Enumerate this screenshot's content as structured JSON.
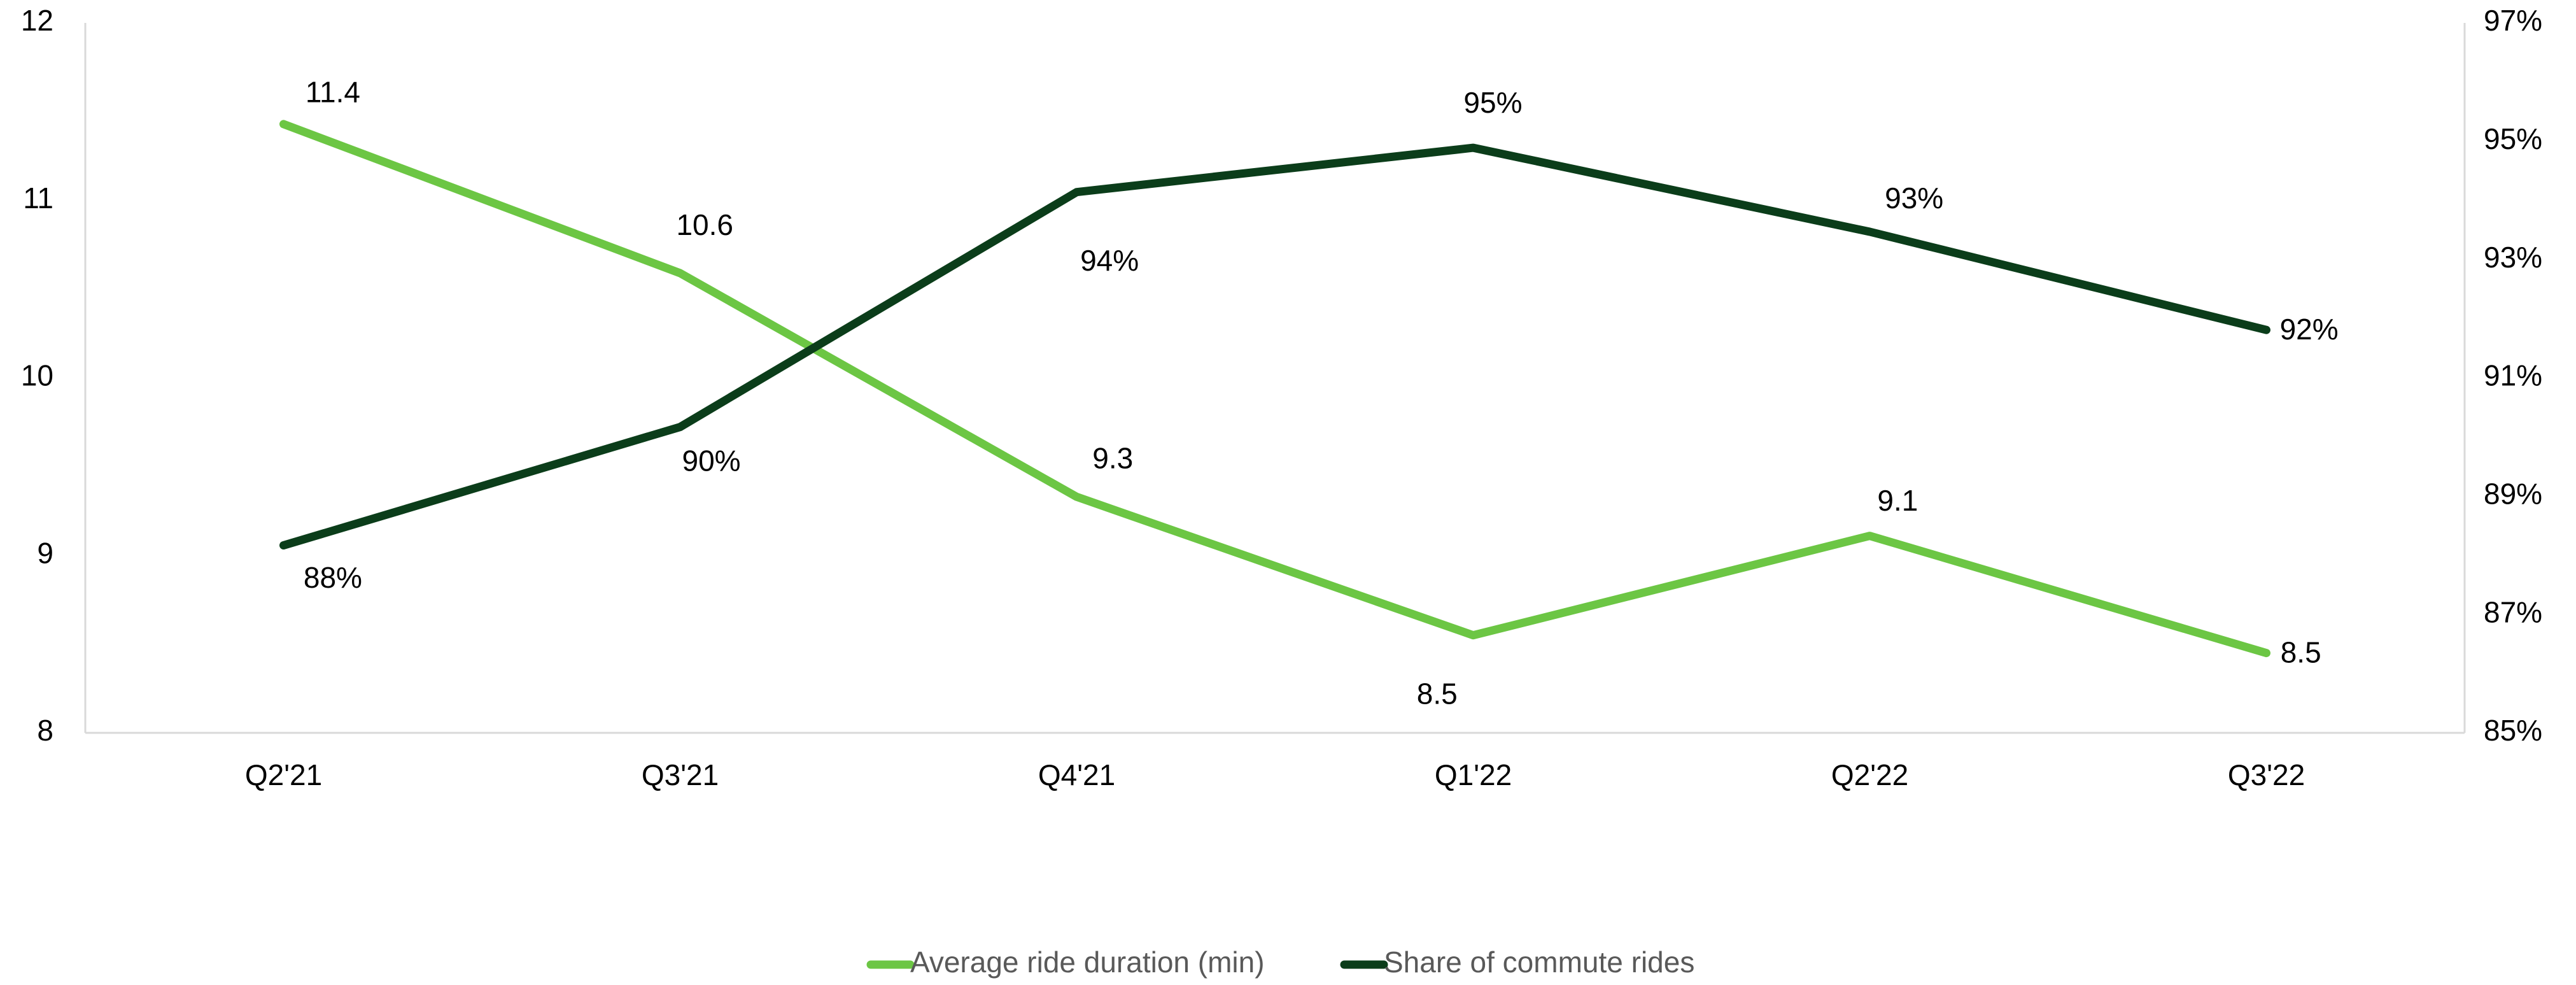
{
  "chart_data": {
    "type": "line",
    "categories": [
      "Q2'21",
      "Q3'21",
      "Q4'21",
      "Q1'22",
      "Q2'22",
      "Q3'22"
    ],
    "series": [
      {
        "name": "Average ride duration (min)",
        "color": "#6cc644",
        "axis": "y",
        "values": [
          11.43,
          10.59,
          9.33,
          8.55,
          9.11,
          8.45
        ],
        "value_labels": [
          "11.4",
          "10.6",
          "9.3",
          "8.5",
          "9.1",
          "8.5"
        ]
      },
      {
        "name": "Share of commute rides",
        "color": "#0b3d1a",
        "axis": "y2",
        "values": [
          88.17,
          90.17,
          94.14,
          94.89,
          93.47,
          91.81
        ],
        "value_labels": [
          "88%",
          "90%",
          "94%",
          "95%",
          "93%",
          "92%"
        ]
      }
    ],
    "ylim": [
      8,
      12
    ],
    "yticks": [
      8,
      9,
      10,
      11,
      12
    ],
    "y2lim": [
      85,
      97
    ],
    "y2ticks": [
      {
        "value": 85,
        "label": "85%"
      },
      {
        "value": 87,
        "label": "87%"
      },
      {
        "value": 89,
        "label": "89%"
      },
      {
        "value": 91,
        "label": "91%"
      },
      {
        "value": 93,
        "label": "93%"
      },
      {
        "value": 95,
        "label": "95%"
      },
      {
        "value": 97,
        "label": "97%"
      }
    ],
    "grid": false,
    "legend": "bottom"
  }
}
